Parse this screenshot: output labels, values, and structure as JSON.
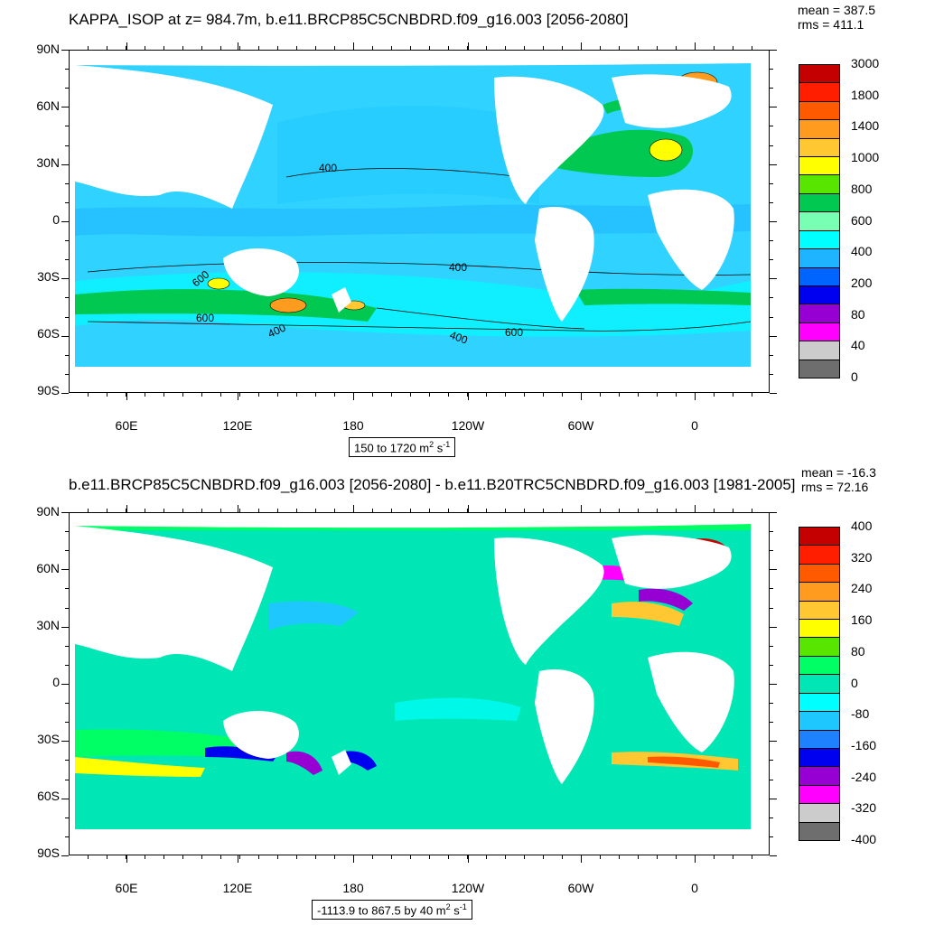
{
  "panel1": {
    "title": "KAPPA_ISOP at z= 984.7m, b.e11.BRCP85C5CNBDRD.f09_g16.003 [2056-2080]",
    "mean": "mean = 387.5",
    "rms": "rms = 411.1",
    "range_text": "150 to 1720 m",
    "units_sup_a": "2",
    "units_tail": " s",
    "units_sup_b": "-1",
    "colorbar": {
      "labels": [
        "3000",
        "1800",
        "1400",
        "1000",
        "800",
        "600",
        "400",
        "200",
        "80",
        "40",
        "0"
      ],
      "colors": [
        "#c40000",
        "#ff1e00",
        "#ff5a00",
        "#ff9b1e",
        "#ffc832",
        "#ffff00",
        "#58e600",
        "#00c850",
        "#78ffb4",
        "#00ffff",
        "#1eb4ff",
        "#0064ff",
        "#0000f0",
        "#9600d2",
        "#ff00ff",
        "#cccccc",
        "#6e6e6e"
      ]
    },
    "contour_labels": [
      "400",
      "400",
      "600",
      "600",
      "400",
      "400",
      "600"
    ]
  },
  "panel2": {
    "title": "b.e11.BRCP85C5CNBDRD.f09_g16.003 [2056-2080] - b.e11.B20TRC5CNBDRD.f09_g16.003 [1981-2005]",
    "mean": "mean = -16.3",
    "rms": "rms = 72.16",
    "range_text": "-1113.9 to 867.5 by 40 m",
    "units_sup_a": "2",
    "units_tail": " s",
    "units_sup_b": "-1",
    "colorbar": {
      "labels": [
        "400",
        "320",
        "240",
        "160",
        "80",
        "0",
        "-80",
        "-160",
        "-240",
        "-320",
        "-400"
      ],
      "colors": [
        "#c40000",
        "#ff1e00",
        "#ff5a00",
        "#ff9b1e",
        "#ffc832",
        "#ffff00",
        "#58e600",
        "#00ff64",
        "#00e6b4",
        "#00ffff",
        "#1ec8ff",
        "#1e82ff",
        "#0000f0",
        "#9600d2",
        "#ff00ff",
        "#cccccc",
        "#6e6e6e"
      ]
    }
  },
  "axes": {
    "lat_labels": [
      "90N",
      "60N",
      "30N",
      "0",
      "30S",
      "60S",
      "90S"
    ],
    "lon_labels": [
      "60E",
      "120E",
      "180",
      "120W",
      "60W",
      "0"
    ]
  },
  "colors": {
    "ocean_base_1": "#30d2ff",
    "ocean_base_2": "#00e6b4",
    "land": "#ffffff"
  }
}
